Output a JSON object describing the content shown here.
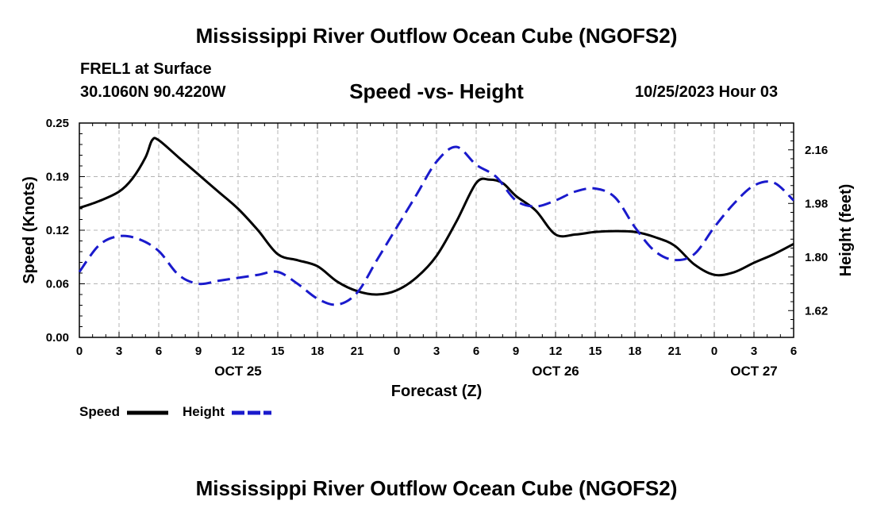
{
  "header": {
    "title": "Mississippi River Outflow Ocean Cube (NGOFS2)",
    "station": "FREL1 at Surface",
    "coords": "30.1060N  90.4220W",
    "subtitle": "Speed -vs- Height",
    "date": "10/25/2023 Hour 03"
  },
  "footer": {
    "title": "Mississippi River Outflow Ocean Cube (NGOFS2)"
  },
  "colors": {
    "speed": "#000000",
    "height": "#1a1acc",
    "grid": "#b4b4b4"
  },
  "chart_data": {
    "type": "line",
    "title": "Speed -vs- Height",
    "xlabel": "Forecast (Z)",
    "ylabel": "Speed (Knots)",
    "y2label": "Height (feet)",
    "xlim": [
      0,
      54
    ],
    "ylim": [
      0,
      0.25
    ],
    "y2lim": [
      1.53,
      2.25
    ],
    "xticks": [
      0,
      3,
      6,
      9,
      12,
      15,
      18,
      21,
      24,
      27,
      30,
      33,
      36,
      39,
      42,
      45,
      48,
      51,
      54
    ],
    "xtick_labels": [
      "0",
      "3",
      "6",
      "9",
      "12",
      "15",
      "18",
      "21",
      "0",
      "3",
      "6",
      "9",
      "12",
      "15",
      "18",
      "21",
      "0",
      "3",
      "6"
    ],
    "yticks": [
      0.0,
      0.0625,
      0.125,
      0.1875,
      0.25
    ],
    "ytick_labels": [
      "0.00",
      "0.06",
      "0.12",
      "0.19",
      "0.25"
    ],
    "y2ticks": [
      1.62,
      1.8,
      1.98,
      2.16
    ],
    "y2tick_labels": [
      "1.62",
      "1.80",
      "1.98",
      "2.16"
    ],
    "day_labels": [
      {
        "x": 12,
        "label": "OCT 25"
      },
      {
        "x": 36,
        "label": "OCT 26"
      },
      {
        "x": 51,
        "label": "OCT 27"
      }
    ],
    "grid": true,
    "series": [
      {
        "name": "Speed",
        "axis": "left",
        "style": "solid",
        "x": [
          0,
          1.5,
          3,
          4,
          5,
          5.5,
          6,
          7.5,
          9,
          10.5,
          12,
          13.5,
          15,
          16.5,
          18,
          19.5,
          21,
          22.5,
          24,
          25.5,
          27,
          28.5,
          30,
          31,
          32,
          33,
          34.5,
          36,
          37.5,
          39,
          40.5,
          42,
          43.5,
          45,
          46.5,
          48,
          49.5,
          51,
          52.5,
          54
        ],
        "values": [
          0.151,
          0.159,
          0.17,
          0.185,
          0.21,
          0.23,
          0.23,
          0.21,
          0.19,
          0.17,
          0.15,
          0.125,
          0.097,
          0.09,
          0.083,
          0.065,
          0.054,
          0.05,
          0.055,
          0.07,
          0.095,
          0.135,
          0.18,
          0.184,
          0.18,
          0.165,
          0.148,
          0.12,
          0.12,
          0.123,
          0.124,
          0.123,
          0.117,
          0.107,
          0.085,
          0.073,
          0.076,
          0.087,
          0.097,
          0.109
        ]
      },
      {
        "name": "Height",
        "axis": "right",
        "style": "dashed",
        "x": [
          0,
          1.5,
          3,
          4.5,
          6,
          7.5,
          9,
          10.5,
          12,
          13.5,
          15,
          16.5,
          18,
          19.5,
          21,
          22.5,
          24,
          25.5,
          27,
          28.5,
          30,
          31.5,
          33,
          34.5,
          36,
          37.5,
          39,
          40.5,
          42,
          43.5,
          45,
          46.5,
          48,
          49.5,
          51,
          52.5,
          54
        ],
        "values": [
          1.75,
          1.84,
          1.87,
          1.86,
          1.82,
          1.74,
          1.71,
          1.72,
          1.73,
          1.74,
          1.75,
          1.71,
          1.66,
          1.64,
          1.68,
          1.79,
          1.9,
          2.01,
          2.12,
          2.17,
          2.11,
          2.07,
          1.99,
          1.97,
          1.99,
          2.02,
          2.03,
          2.0,
          1.9,
          1.82,
          1.79,
          1.81,
          1.9,
          1.98,
          2.04,
          2.05,
          1.99
        ]
      }
    ]
  },
  "legend": {
    "speed_label": "Speed",
    "height_label": "Height"
  }
}
